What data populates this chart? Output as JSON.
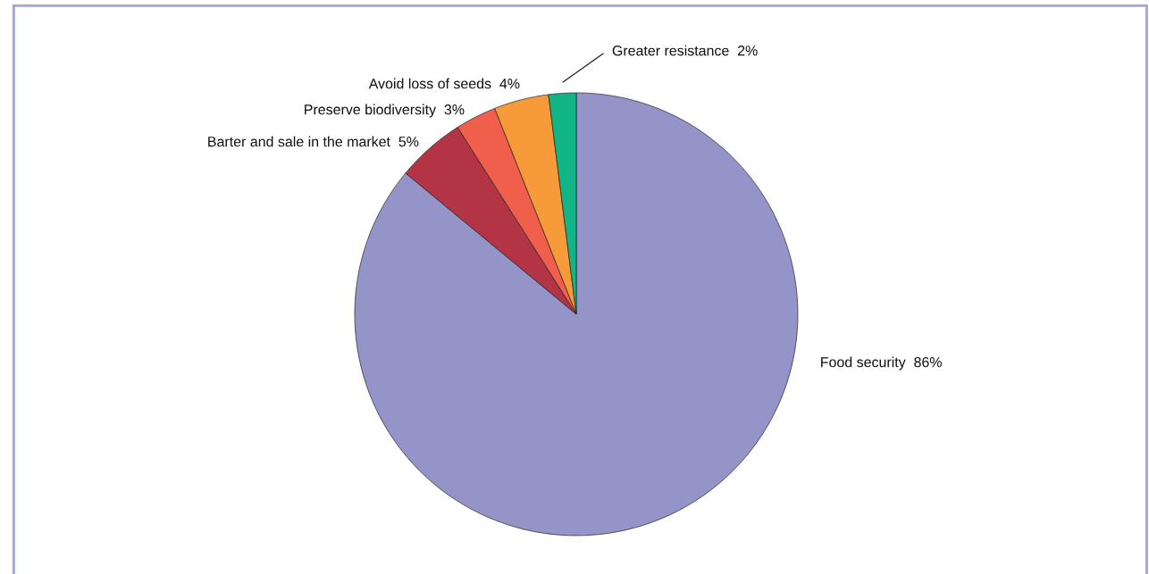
{
  "chart_data": {
    "type": "pie",
    "categories": [
      "Food security",
      "Barter and sale in the market",
      "Preserve biodiversity",
      "Avoid loss of seeds",
      "Greater resistance"
    ],
    "values": [
      86,
      5,
      3,
      4,
      2
    ],
    "value_labels": [
      "86%",
      "5%",
      "3%",
      "4%",
      "2%"
    ],
    "colors": [
      "#9494c8",
      "#b33445",
      "#ef5f4b",
      "#f69a3a",
      "#12b585"
    ]
  }
}
